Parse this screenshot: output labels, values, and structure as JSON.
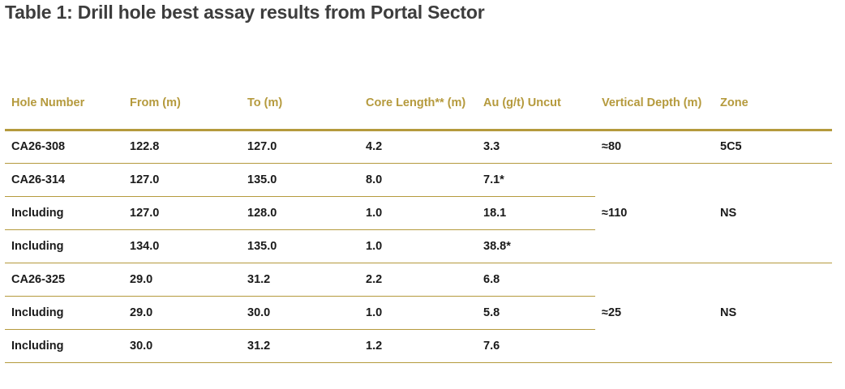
{
  "title": "Table 1: Drill hole best assay results from Portal Sector",
  "colors": {
    "accent": "#b59a3d",
    "title": "#3d3d3d",
    "text": "#1a1a1a"
  },
  "headers": [
    "Hole Number",
    "From (m)",
    "To (m)",
    "Core Length** (m)",
    "Au (g/t) Uncut",
    "Vertical Depth (m)",
    "Zone"
  ],
  "rows": [
    [
      "CA26-308",
      "122.8",
      "127.0",
      "4.2",
      "3.3"
    ],
    [
      "CA26-314",
      "127.0",
      "135.0",
      "8.0",
      "7.1*"
    ],
    [
      "Including",
      "127.0",
      "128.0",
      "1.0",
      "18.1"
    ],
    [
      "Including",
      "134.0",
      "135.0",
      "1.0",
      "38.8*"
    ],
    [
      "CA26-325",
      "29.0",
      "31.2",
      "2.2",
      "6.8"
    ],
    [
      "Including",
      "29.0",
      "30.0",
      "1.0",
      "5.8"
    ],
    [
      "Including",
      "30.0",
      "31.2",
      "1.2",
      "7.6"
    ]
  ],
  "groups": [
    {
      "vertical_depth": "≈80",
      "zone": "5C5"
    },
    {
      "vertical_depth": "≈110",
      "zone": "NS"
    },
    {
      "vertical_depth": "≈25",
      "zone": "NS"
    }
  ]
}
